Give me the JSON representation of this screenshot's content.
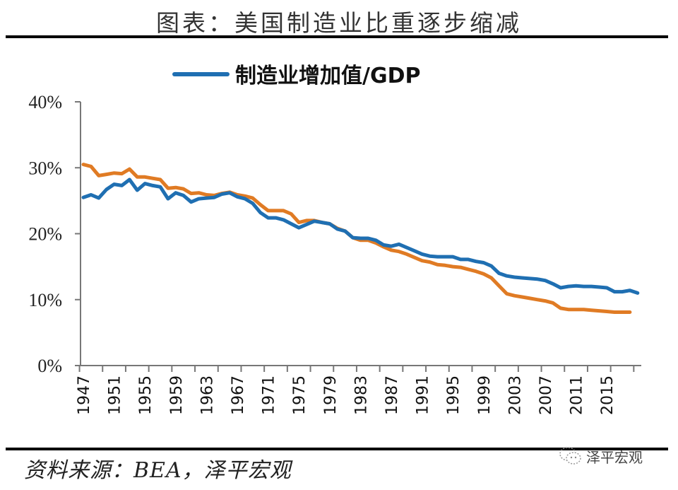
{
  "header": {
    "title": "图表：美国制造业比重逐步缩减"
  },
  "footer": {
    "source": "资料来源：BEA，泽平宏观",
    "watermark": "泽平宏观",
    "watermark_icon": "wechat-icon"
  },
  "chart_data": {
    "type": "line",
    "title": "图表：美国制造业比重逐步缩减",
    "xlabel": "",
    "ylabel": "",
    "ylim": [
      0,
      40
    ],
    "y_ticks": [
      "0%",
      "10%",
      "20%",
      "30%",
      "40%"
    ],
    "y_tick_values": [
      0,
      10,
      20,
      30,
      40
    ],
    "x_tick_labels": [
      "1947",
      "1951",
      "1955",
      "1959",
      "1963",
      "1967",
      "1971",
      "1975",
      "1979",
      "1983",
      "1987",
      "1991",
      "1995",
      "1999",
      "2003",
      "2007",
      "2011",
      "2015"
    ],
    "grid": false,
    "legend_position": "top-center",
    "x": [
      1947,
      1948,
      1949,
      1950,
      1951,
      1952,
      1953,
      1954,
      1955,
      1956,
      1957,
      1958,
      1959,
      1960,
      1961,
      1962,
      1963,
      1964,
      1965,
      1966,
      1967,
      1968,
      1969,
      1970,
      1971,
      1972,
      1973,
      1974,
      1975,
      1976,
      1977,
      1978,
      1979,
      1980,
      1981,
      1982,
      1983,
      1984,
      1985,
      1986,
      1987,
      1988,
      1989,
      1990,
      1991,
      1992,
      1993,
      1994,
      1995,
      1996,
      1997,
      1998,
      1999,
      2000,
      2001,
      2002,
      2003,
      2004,
      2005,
      2006,
      2007,
      2008,
      2009,
      2010,
      2011,
      2012,
      2013,
      2014,
      2015,
      2016,
      2017,
      2018,
      2019
    ],
    "series": [
      {
        "name": "制造业增加值/GDP",
        "color": "#1f6fb2",
        "show_in_legend": true,
        "values": [
          25.5,
          25.9,
          25.4,
          26.7,
          27.5,
          27.3,
          28.2,
          26.6,
          27.6,
          27.3,
          27.1,
          25.3,
          26.2,
          25.8,
          24.8,
          25.3,
          25.4,
          25.5,
          26.0,
          26.2,
          25.6,
          25.3,
          24.6,
          23.2,
          22.4,
          22.4,
          22.1,
          21.5,
          20.9,
          21.4,
          21.9,
          21.7,
          21.5,
          20.7,
          20.4,
          19.4,
          19.3,
          19.3,
          19.0,
          18.3,
          18.1,
          18.4,
          17.9,
          17.4,
          16.9,
          16.6,
          16.5,
          16.5,
          16.5,
          16.1,
          16.1,
          15.8,
          15.6,
          15.1,
          14.0,
          13.6,
          13.4,
          13.3,
          13.2,
          13.1,
          12.9,
          12.4,
          11.8,
          12.0,
          12.1,
          12.0,
          12.0,
          11.9,
          11.8,
          11.2,
          11.2,
          11.4,
          11.0
        ]
      },
      {
        "name": "",
        "color": "#e07b24",
        "show_in_legend": false,
        "values": [
          30.5,
          30.2,
          28.8,
          29.0,
          29.2,
          29.1,
          29.8,
          28.6,
          28.6,
          28.4,
          28.2,
          26.9,
          27.0,
          26.8,
          26.1,
          26.2,
          25.9,
          25.8,
          26.1,
          26.3,
          25.9,
          25.7,
          25.4,
          24.4,
          23.5,
          23.5,
          23.5,
          23.0,
          21.7,
          22.0,
          22.0,
          21.7,
          21.5,
          20.8,
          20.4,
          19.4,
          19.0,
          19.0,
          18.6,
          18.0,
          17.5,
          17.3,
          16.9,
          16.4,
          15.9,
          15.7,
          15.3,
          15.2,
          15.0,
          14.9,
          14.6,
          14.3,
          13.9,
          13.3,
          12.1,
          10.9,
          10.6,
          10.4,
          10.2,
          10.0,
          9.8,
          9.5,
          8.7,
          8.5,
          8.5,
          8.5,
          8.4,
          8.3,
          8.2,
          8.1,
          8.1,
          8.1,
          null
        ]
      }
    ],
    "legend": [
      {
        "label": "制造业增加值/GDP",
        "color": "#1f6fb2"
      }
    ]
  }
}
